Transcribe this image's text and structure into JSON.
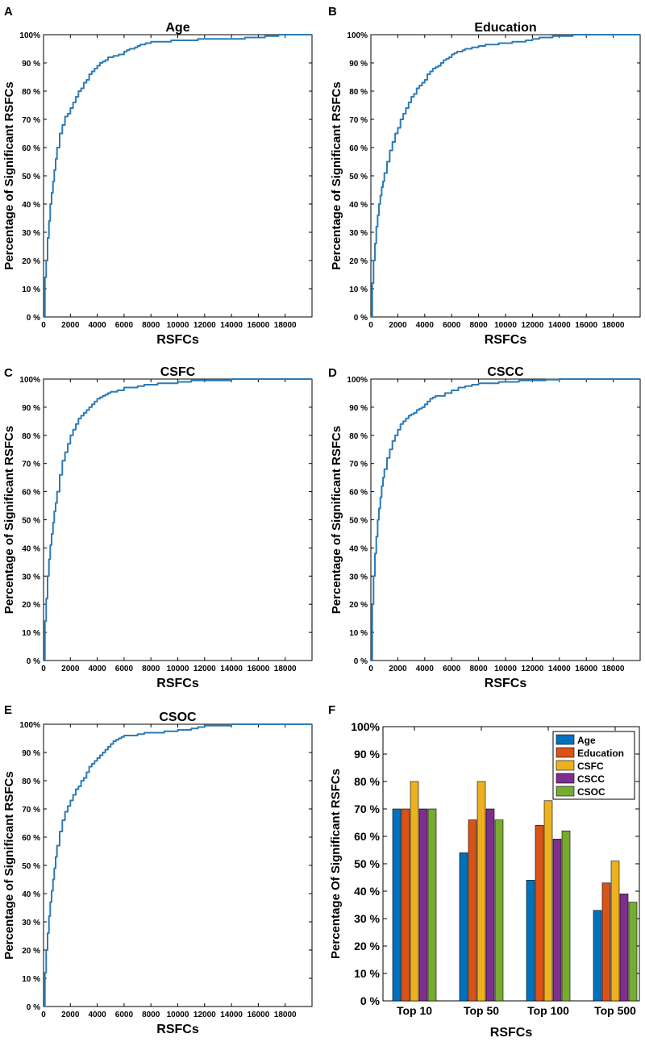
{
  "chart_data": [
    {
      "panel": "A",
      "type": "line",
      "title": "Age",
      "xlabel": "RSFCs",
      "ylabel": "Percentage of Significant RSFCs",
      "xlim": [
        0,
        20000
      ],
      "ylim": [
        0,
        100
      ],
      "xticks": [
        "0",
        "2000",
        "4000",
        "6000",
        "8000",
        "10000",
        "12000",
        "14000",
        "16000",
        "18000"
      ],
      "yticks": [
        "0 %",
        "10 %",
        "20 %",
        "30 %",
        "40 %",
        "50 %",
        "60 %",
        "70 %",
        "80 %",
        "90 %",
        "100%"
      ],
      "color": "#2c7bb6",
      "x": [
        0,
        100,
        200,
        300,
        400,
        500,
        600,
        700,
        800,
        900,
        1000,
        1200,
        1400,
        1600,
        1800,
        2000,
        2200,
        2400,
        2600,
        2800,
        3000,
        3200,
        3400,
        3600,
        3800,
        4000,
        4200,
        4400,
        4600,
        4800,
        5000,
        5200,
        5400,
        5600,
        5800,
        6000,
        6200,
        6400,
        6600,
        6800,
        7000,
        7200,
        7400,
        7600,
        7800,
        8000,
        8500,
        9000,
        9500,
        10000,
        10500,
        11000,
        11500,
        12000,
        12500,
        13000,
        13500,
        14000,
        14500,
        15000,
        15500,
        16000,
        16500,
        17000,
        17500,
        18000,
        18500,
        19000,
        19500,
        20000
      ],
      "y": [
        0,
        14,
        20,
        28,
        34,
        40,
        44,
        48,
        52,
        56,
        60,
        65,
        68,
        71,
        72,
        74,
        76,
        78,
        80,
        81,
        83,
        84,
        86,
        87,
        88,
        89,
        90,
        90.5,
        91,
        92,
        92,
        92.5,
        92.5,
        93,
        93,
        94,
        94.5,
        95,
        95,
        95.5,
        96,
        96.5,
        96.5,
        97,
        97,
        97.5,
        97.5,
        97.5,
        98,
        98,
        98,
        98,
        98.5,
        98.5,
        98.5,
        98.5,
        98.5,
        98.5,
        98.5,
        99,
        99,
        99,
        99.5,
        99.5,
        100,
        100,
        100,
        100,
        100,
        100
      ]
    },
    {
      "panel": "B",
      "type": "line",
      "title": "Education",
      "xlabel": "RSFCs",
      "ylabel": "Percentage of Significant RSFCs",
      "xlim": [
        0,
        20000
      ],
      "ylim": [
        0,
        100
      ],
      "xticks": [
        "0",
        "2000",
        "4000",
        "6000",
        "8000",
        "10000",
        "12000",
        "14000",
        "16000",
        "18000"
      ],
      "yticks": [
        "0 %",
        "10 %",
        "20 %",
        "30 %",
        "40 %",
        "50 %",
        "60 %",
        "70 %",
        "80 %",
        "90 %",
        "100%"
      ],
      "color": "#2c7bb6",
      "x": [
        0,
        100,
        200,
        300,
        400,
        500,
        600,
        700,
        800,
        900,
        1000,
        1200,
        1400,
        1600,
        1800,
        2000,
        2200,
        2400,
        2600,
        2800,
        3000,
        3200,
        3400,
        3600,
        3800,
        4000,
        4200,
        4400,
        4600,
        4800,
        5000,
        5200,
        5400,
        5600,
        5800,
        6000,
        6200,
        6400,
        6600,
        6800,
        7000,
        7500,
        8000,
        8500,
        9000,
        9500,
        10000,
        10500,
        11000,
        11500,
        12000,
        12500,
        13000,
        13500,
        14000,
        14500,
        15000,
        16000,
        17000,
        18000,
        19000,
        20000
      ],
      "y": [
        0,
        12,
        20,
        26,
        32,
        36,
        40,
        43,
        46,
        48,
        51,
        55,
        59,
        62,
        65,
        67,
        70,
        72,
        74,
        76,
        78,
        79,
        81,
        82,
        83,
        84,
        86,
        87,
        88,
        88.5,
        89,
        90,
        91,
        91.5,
        92,
        93,
        93.5,
        94,
        94,
        94.5,
        95,
        95.5,
        96,
        96.5,
        96.5,
        97,
        97,
        97.5,
        97.5,
        98,
        98.5,
        99,
        99,
        99.5,
        99.5,
        99.5,
        100,
        100,
        100,
        100,
        100,
        100
      ]
    },
    {
      "panel": "C",
      "type": "line",
      "title": "CSFC",
      "xlabel": "RSFCs",
      "ylabel": "Percentage of Significant RSFCs",
      "xlim": [
        0,
        20000
      ],
      "ylim": [
        0,
        100
      ],
      "xticks": [
        "0",
        "2000",
        "4000",
        "6000",
        "8000",
        "10000",
        "12000",
        "14000",
        "16000",
        "18000"
      ],
      "yticks": [
        "0 %",
        "10 %",
        "20 %",
        "30 %",
        "40 %",
        "50 %",
        "60 %",
        "70 %",
        "80 %",
        "90 %",
        "100%"
      ],
      "color": "#2c7bb6",
      "x": [
        0,
        100,
        200,
        300,
        400,
        500,
        600,
        700,
        800,
        900,
        1000,
        1200,
        1400,
        1600,
        1800,
        2000,
        2200,
        2400,
        2600,
        2800,
        3000,
        3200,
        3400,
        3600,
        3800,
        4000,
        4200,
        4400,
        4600,
        4800,
        5000,
        5500,
        6000,
        6500,
        7000,
        7500,
        8000,
        8500,
        9000,
        9500,
        10000,
        10500,
        11000,
        11500,
        12000,
        12500,
        13000,
        14000,
        15000,
        16000,
        17000,
        18000,
        19000,
        20000
      ],
      "y": [
        0,
        14,
        22,
        30,
        36,
        41,
        45,
        49,
        53,
        56,
        60,
        66,
        71,
        74,
        77,
        80,
        82,
        84,
        86,
        87,
        88,
        89,
        90,
        91,
        92,
        93,
        93.5,
        94,
        94.5,
        95,
        95.5,
        96,
        97,
        97,
        97.5,
        98,
        98,
        98.5,
        98.5,
        98.5,
        99,
        99,
        99.5,
        99.5,
        99.5,
        99.5,
        99.5,
        100,
        100,
        100,
        100,
        100,
        100,
        100
      ]
    },
    {
      "panel": "D",
      "type": "line",
      "title": "CSCC",
      "xlabel": "RSFCs",
      "ylabel": "Percentage of Significant RSFCs",
      "xlim": [
        0,
        20000
      ],
      "ylim": [
        0,
        100
      ],
      "xticks": [
        "0",
        "2000",
        "4000",
        "6000",
        "8000",
        "10000",
        "12000",
        "14000",
        "16000",
        "18000"
      ],
      "yticks": [
        "0 %",
        "10 %",
        "20 %",
        "30 %",
        "40 %",
        "50 %",
        "60 %",
        "70 %",
        "80 %",
        "90 %",
        "100%"
      ],
      "color": "#2c7bb6",
      "x": [
        0,
        100,
        200,
        300,
        400,
        500,
        600,
        700,
        800,
        900,
        1000,
        1200,
        1400,
        1600,
        1800,
        2000,
        2200,
        2400,
        2600,
        2800,
        3000,
        3200,
        3400,
        3600,
        3800,
        4000,
        4200,
        4400,
        4600,
        4800,
        5000,
        5500,
        6000,
        6500,
        7000,
        7500,
        8000,
        8500,
        9000,
        9500,
        10000,
        11000,
        12000,
        13000,
        14000,
        15000,
        16000,
        17000,
        18000,
        19000,
        20000
      ],
      "y": [
        0,
        20,
        30,
        38,
        44,
        50,
        54,
        58,
        62,
        65,
        68,
        72,
        75,
        78,
        80,
        82,
        84,
        85,
        86,
        87,
        87.5,
        88,
        89,
        89.5,
        90,
        91,
        92,
        93,
        93.5,
        94,
        94,
        95,
        96,
        97,
        97.5,
        98,
        98.5,
        98.5,
        98.5,
        99,
        99,
        99.5,
        99.5,
        99.8,
        100,
        100,
        100,
        100,
        100,
        100,
        100
      ]
    },
    {
      "panel": "E",
      "type": "line",
      "title": "CSOC",
      "xlabel": "RSFCs",
      "ylabel": "Percentage of Significant RSFCs",
      "xlim": [
        0,
        20000
      ],
      "ylim": [
        0,
        100
      ],
      "xticks": [
        "0",
        "2000",
        "4000",
        "6000",
        "8000",
        "10000",
        "12000",
        "14000",
        "16000",
        "18000"
      ],
      "yticks": [
        "0 %",
        "10 %",
        "20 %",
        "30 %",
        "40 %",
        "50 %",
        "60 %",
        "70 %",
        "80 %",
        "90 %",
        "100%"
      ],
      "color": "#2c7bb6",
      "x": [
        0,
        100,
        200,
        300,
        400,
        500,
        600,
        700,
        800,
        900,
        1000,
        1200,
        1400,
        1600,
        1800,
        2000,
        2200,
        2400,
        2600,
        2800,
        3000,
        3200,
        3400,
        3600,
        3800,
        4000,
        4200,
        4400,
        4600,
        4800,
        5000,
        5200,
        5400,
        5600,
        5800,
        6000,
        6500,
        7000,
        7500,
        8000,
        8500,
        9000,
        9500,
        10000,
        10500,
        11000,
        11500,
        12000,
        12500,
        13000,
        14000,
        15000,
        16000,
        17000,
        18000,
        19000,
        20000
      ],
      "y": [
        0,
        12,
        20,
        26,
        32,
        37,
        41,
        45,
        49,
        53,
        57,
        62,
        66,
        69,
        71,
        73,
        75,
        77,
        78,
        80,
        81,
        83,
        85,
        86,
        87,
        88,
        89,
        90,
        91,
        92,
        93,
        94,
        94.5,
        95,
        95.5,
        96,
        96,
        96.5,
        97,
        97,
        97,
        97.5,
        97.5,
        98,
        98,
        98.5,
        99,
        99.5,
        99.5,
        99.5,
        100,
        100,
        100,
        100,
        100,
        100,
        100
      ]
    },
    {
      "panel": "F",
      "type": "bar",
      "xlabel": "RSFCs",
      "ylabel": "Percentage Of Significant RSFCs",
      "ylim": [
        0,
        100
      ],
      "yticks": [
        "0 %",
        "10 %",
        "20 %",
        "30 %",
        "40 %",
        "50 %",
        "60 %",
        "70 %",
        "80 %",
        "90 %",
        "100%"
      ],
      "categories": [
        "Top 10",
        "Top 50",
        "Top 100",
        "Top 500"
      ],
      "legend_position": "top-right",
      "series": [
        {
          "name": "Age",
          "color": "#0072bd",
          "values": [
            70,
            54,
            44,
            33
          ]
        },
        {
          "name": "Education",
          "color": "#d95319",
          "values": [
            70,
            66,
            64,
            43
          ]
        },
        {
          "name": "CSFC",
          "color": "#edb120",
          "values": [
            80,
            80,
            73,
            51
          ]
        },
        {
          "name": "CSCC",
          "color": "#7e2f8e",
          "values": [
            70,
            70,
            59,
            39
          ]
        },
        {
          "name": "CSOC",
          "color": "#77ac30",
          "values": [
            70,
            66,
            62,
            36
          ]
        }
      ]
    }
  ]
}
